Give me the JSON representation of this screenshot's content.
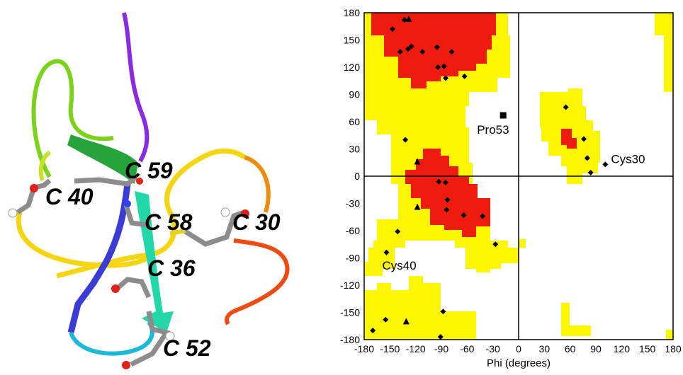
{
  "residue_labels": [
    "C 40",
    "C 59",
    "C 58",
    "C 30",
    "C 36",
    "C 52"
  ],
  "chart_data": {
    "type": "scatter",
    "title": "",
    "xlabel": "Phi (degrees)",
    "ylabel": "",
    "xlim": [
      -180,
      180
    ],
    "ylim": [
      -180,
      180
    ],
    "xticks": [
      -180,
      -150,
      -120,
      -90,
      -60,
      -30,
      0,
      30,
      60,
      90,
      120,
      150,
      180
    ],
    "yticks": [
      -180,
      -150,
      -120,
      -90,
      -60,
      -30,
      0,
      30,
      60,
      90,
      120,
      150,
      180
    ],
    "regions": {
      "core_color": "#ee1c0e",
      "allowed_color": "#fcf700",
      "disallowed_color": "#ffffff"
    },
    "series": [
      {
        "marker": "circle",
        "points": [
          [
            -147,
            162
          ],
          [
            -133,
            172
          ],
          [
            -138,
            137
          ],
          [
            -125,
            143
          ],
          [
            -129,
            140
          ],
          [
            -112,
            137
          ],
          [
            -94,
            120
          ],
          [
            -87,
            121
          ],
          [
            -85,
            108
          ],
          [
            -95,
            142
          ],
          [
            -78,
            137
          ],
          [
            -63,
            110
          ],
          [
            -132,
            40
          ],
          [
            -93,
            -6
          ],
          [
            -85,
            -7
          ],
          [
            -83,
            -26
          ],
          [
            -84,
            -37
          ],
          [
            -64,
            -43
          ],
          [
            -42,
            -44
          ],
          [
            -141,
            -61
          ],
          [
            -27,
            -75
          ],
          [
            -154,
            -84
          ],
          [
            55,
            76
          ],
          [
            76,
            41
          ],
          [
            80,
            20
          ],
          [
            84,
            4
          ],
          [
            101,
            13
          ],
          [
            -170,
            -170
          ],
          [
            -155,
            -158
          ],
          [
            -88,
            -149
          ],
          [
            -91,
            -177
          ]
        ]
      },
      {
        "marker": "triangle",
        "points": [
          [
            -128,
            173
          ],
          [
            -118,
            16
          ],
          [
            -118,
            -34
          ],
          [
            -131,
            -160
          ]
        ]
      },
      {
        "marker": "square",
        "points": [
          [
            -18,
            67
          ]
        ]
      }
    ],
    "annotations": [
      {
        "text": "Pro53",
        "x": -18,
        "y": 67
      },
      {
        "text": "Cys30",
        "x": 101,
        "y": 13
      },
      {
        "text": "Cys40",
        "x": -154,
        "y": -84
      }
    ]
  }
}
